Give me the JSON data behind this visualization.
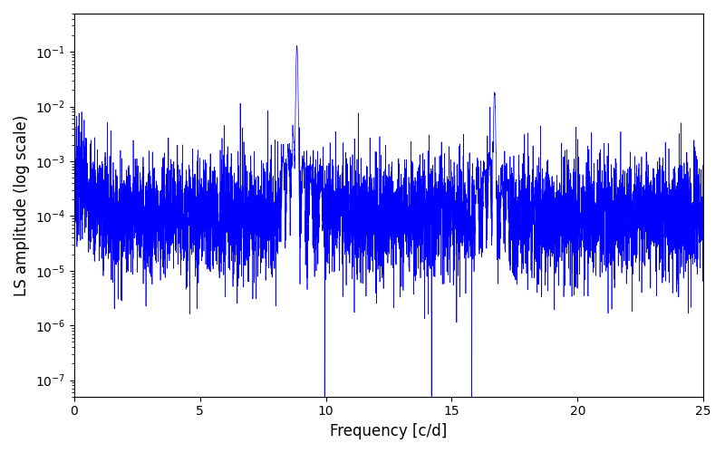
{
  "title": "",
  "xlabel": "Frequency [c/d]",
  "ylabel": "LS amplitude (log scale)",
  "xlim": [
    0,
    25
  ],
  "ylim": [
    5e-08,
    0.5
  ],
  "line_color": "#0000ff",
  "background_color": "#ffffff",
  "peak1_freq": 8.85,
  "peak1_amp": 0.13,
  "peak2_freq": 16.7,
  "peak2_amp": 0.018,
  "noise_floor_log_mean": -4.0,
  "noise_floor_log_std": 0.55,
  "n_points": 6000,
  "seed": 7
}
